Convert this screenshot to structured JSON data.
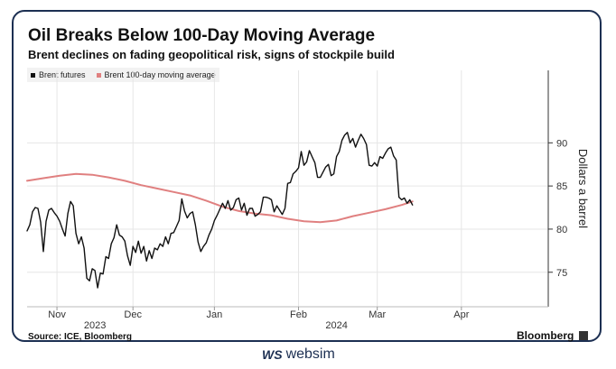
{
  "header": {
    "title": "Oil Breaks Below 100-Day Moving Average",
    "subtitle": "Brent declines on fading geopolitical risk, signs of stockpile build"
  },
  "legend": {
    "items": [
      {
        "label": "Brent futures",
        "color": "#111111"
      },
      {
        "label": "Brent 100-day moving average",
        "color": "#e08080"
      }
    ]
  },
  "footer": {
    "source": "Source: ICE, Bloomberg",
    "brand": "Bloomberg",
    "watermark_logo": "WS",
    "watermark_text": "websim"
  },
  "chart_data": {
    "type": "line",
    "title": "Oil Breaks Below 100-Day Moving Average",
    "subtitle": "Brent declines on fading geopolitical risk, signs of stockpile build",
    "xlabel": "",
    "ylabel": "Dollars a barrel",
    "ylim": [
      71,
      98.4
    ],
    "y_ticks": [
      75,
      80,
      85,
      90
    ],
    "x_ticks": [
      {
        "label": "Nov",
        "day": 0
      },
      {
        "label": "Dec",
        "day": 28
      },
      {
        "label": "Jan",
        "day": 58
      },
      {
        "label": "Feb",
        "day": 89
      },
      {
        "label": "Mar",
        "day": 118
      },
      {
        "label": "Apr",
        "day": 149
      }
    ],
    "year_labels": [
      {
        "label": "2023",
        "day": 14
      },
      {
        "label": "2024",
        "day": 103
      }
    ],
    "x_range": [
      -11,
      181
    ],
    "series": [
      {
        "name": "Brent futures",
        "color": "#111111",
        "points": [
          [
            -11,
            79.8
          ],
          [
            -10,
            80.5
          ],
          [
            -9,
            82.0
          ],
          [
            -8,
            82.5
          ],
          [
            -7,
            82.4
          ],
          [
            -6,
            80.8
          ],
          [
            -5,
            77.4
          ],
          [
            -4,
            80.9
          ],
          [
            -3,
            82.2
          ],
          [
            -2,
            82.4
          ],
          [
            -1,
            81.9
          ],
          [
            0,
            81.5
          ],
          [
            1,
            80.9
          ],
          [
            2,
            80.0
          ],
          [
            3,
            79.2
          ],
          [
            4,
            81.8
          ],
          [
            5,
            83.2
          ],
          [
            6,
            82.7
          ],
          [
            7,
            79.5
          ],
          [
            8,
            78.3
          ],
          [
            9,
            79.1
          ],
          [
            10,
            77.8
          ],
          [
            11,
            74.3
          ],
          [
            12,
            74.0
          ],
          [
            13,
            75.4
          ],
          [
            14,
            75.2
          ],
          [
            15,
            73.2
          ],
          [
            16,
            74.9
          ],
          [
            17,
            74.8
          ],
          [
            18,
            76.8
          ],
          [
            19,
            76.6
          ],
          [
            20,
            78.3
          ],
          [
            21,
            79.0
          ],
          [
            22,
            80.5
          ],
          [
            23,
            79.3
          ],
          [
            24,
            79.1
          ],
          [
            25,
            78.6
          ],
          [
            26,
            76.9
          ],
          [
            27,
            75.8
          ],
          [
            28,
            78.0
          ],
          [
            29,
            77.3
          ],
          [
            30,
            78.6
          ],
          [
            31,
            77.2
          ],
          [
            32,
            78.0
          ],
          [
            33,
            76.3
          ],
          [
            34,
            77.5
          ],
          [
            35,
            76.6
          ],
          [
            36,
            77.8
          ],
          [
            37,
            77.6
          ],
          [
            38,
            78.3
          ],
          [
            39,
            78.0
          ],
          [
            40,
            79.1
          ],
          [
            41,
            78.3
          ],
          [
            42,
            79.5
          ],
          [
            43,
            79.6
          ],
          [
            44,
            80.3
          ],
          [
            45,
            81.0
          ],
          [
            46,
            83.5
          ],
          [
            47,
            82.1
          ],
          [
            48,
            81.3
          ],
          [
            49,
            81.8
          ],
          [
            50,
            82.0
          ],
          [
            51,
            80.5
          ],
          [
            52,
            78.5
          ],
          [
            53,
            77.4
          ],
          [
            54,
            78.0
          ],
          [
            55,
            78.4
          ],
          [
            56,
            79.3
          ],
          [
            57,
            80.0
          ],
          [
            58,
            81.0
          ],
          [
            59,
            81.6
          ],
          [
            60,
            82.3
          ],
          [
            61,
            83.0
          ],
          [
            62,
            82.4
          ],
          [
            63,
            83.3
          ],
          [
            64,
            82.2
          ],
          [
            65,
            82.5
          ],
          [
            66,
            83.4
          ],
          [
            67,
            83.6
          ],
          [
            68,
            82.2
          ],
          [
            69,
            83.0
          ],
          [
            70,
            81.6
          ],
          [
            71,
            82.4
          ],
          [
            72,
            82.4
          ],
          [
            73,
            81.5
          ],
          [
            74,
            81.7
          ],
          [
            75,
            82.0
          ],
          [
            76,
            83.7
          ],
          [
            77,
            83.7
          ],
          [
            78,
            83.6
          ],
          [
            79,
            83.4
          ],
          [
            80,
            82.0
          ],
          [
            81,
            82.7
          ],
          [
            82,
            82.2
          ],
          [
            83,
            81.7
          ],
          [
            84,
            82.4
          ],
          [
            85,
            85.3
          ],
          [
            86,
            85.4
          ],
          [
            87,
            86.4
          ],
          [
            88,
            86.7
          ],
          [
            89,
            87.1
          ],
          [
            90,
            89.0
          ],
          [
            91,
            87.4
          ],
          [
            92,
            87.8
          ],
          [
            93,
            89.1
          ],
          [
            94,
            88.4
          ],
          [
            95,
            87.7
          ],
          [
            96,
            86.0
          ],
          [
            97,
            86.0
          ],
          [
            98,
            86.6
          ],
          [
            99,
            87.2
          ],
          [
            100,
            87.5
          ],
          [
            101,
            86.2
          ],
          [
            102,
            86.4
          ],
          [
            103,
            88.4
          ],
          [
            104,
            89.0
          ],
          [
            105,
            90.3
          ],
          [
            106,
            90.9
          ],
          [
            107,
            91.2
          ],
          [
            108,
            90.0
          ],
          [
            109,
            90.5
          ],
          [
            110,
            89.5
          ],
          [
            111,
            90.3
          ],
          [
            112,
            91.0
          ],
          [
            113,
            90.5
          ],
          [
            114,
            89.8
          ],
          [
            115,
            87.4
          ],
          [
            116,
            87.3
          ],
          [
            117,
            87.7
          ],
          [
            118,
            87.3
          ],
          [
            119,
            88.4
          ],
          [
            120,
            88.2
          ],
          [
            121,
            88.8
          ],
          [
            122,
            89.3
          ],
          [
            123,
            89.5
          ],
          [
            124,
            88.5
          ],
          [
            125,
            88.0
          ],
          [
            126,
            83.7
          ],
          [
            127,
            83.4
          ],
          [
            128,
            83.6
          ],
          [
            129,
            83.0
          ],
          [
            130,
            83.4
          ],
          [
            131,
            82.8
          ]
        ]
      },
      {
        "name": "Brent 100-day moving average",
        "color": "#e08080",
        "points": [
          [
            -11,
            85.6
          ],
          [
            -5,
            85.9
          ],
          [
            1,
            86.2
          ],
          [
            7,
            86.4
          ],
          [
            13,
            86.3
          ],
          [
            19,
            86.0
          ],
          [
            25,
            85.6
          ],
          [
            31,
            85.1
          ],
          [
            37,
            84.7
          ],
          [
            43,
            84.3
          ],
          [
            49,
            83.9
          ],
          [
            55,
            83.3
          ],
          [
            61,
            82.6
          ],
          [
            67,
            82.1
          ],
          [
            73,
            81.8
          ],
          [
            79,
            81.6
          ],
          [
            85,
            81.2
          ],
          [
            91,
            80.9
          ],
          [
            97,
            80.8
          ],
          [
            103,
            81.0
          ],
          [
            109,
            81.5
          ],
          [
            115,
            81.9
          ],
          [
            121,
            82.3
          ],
          [
            127,
            82.8
          ],
          [
            131,
            83.2
          ]
        ]
      }
    ]
  }
}
